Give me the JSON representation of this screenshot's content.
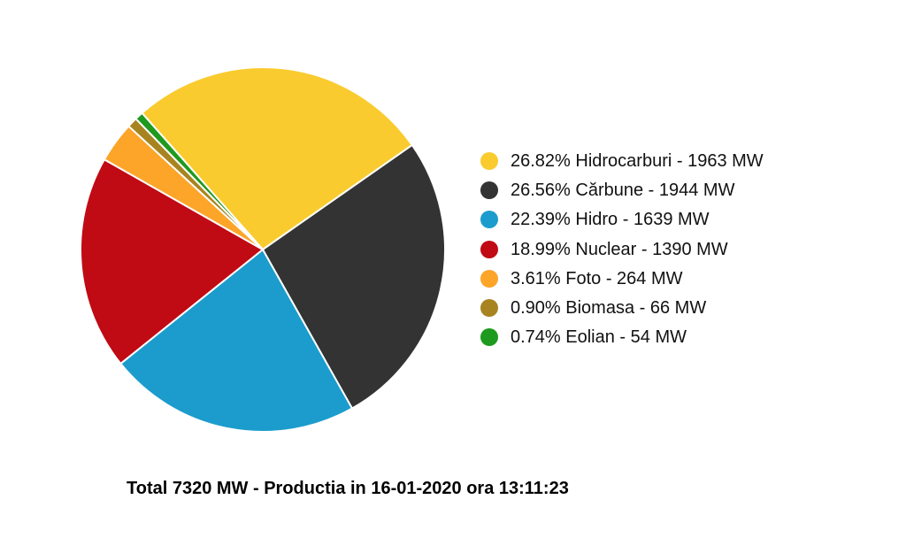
{
  "chart_data": {
    "type": "pie",
    "total_label": "Total 7320 MW - Productia in 16-01-2020 ora 13:11:23",
    "slices": [
      {
        "label": "26.82% Hidrocarburi - 1963 MW",
        "value": 1963,
        "percent": 26.82,
        "color": "#FACB2E"
      },
      {
        "label": "26.56% Cărbune - 1944 MW",
        "value": 1944,
        "percent": 26.56,
        "color": "#333333"
      },
      {
        "label": "22.39% Hidro - 1639 MW",
        "value": 1639,
        "percent": 22.39,
        "color": "#1B9CCD"
      },
      {
        "label": "18.99% Nuclear - 1390 MW",
        "value": 1390,
        "percent": 18.99,
        "color": "#C00A14"
      },
      {
        "label": "3.61% Foto - 264 MW",
        "value": 264,
        "percent": 3.61,
        "color": "#FCA529"
      },
      {
        "label": "0.90% Biomasa - 66 MW",
        "value": 66,
        "percent": 0.9,
        "color": "#A88420"
      },
      {
        "label": "0.74% Eolian - 54 MW",
        "value": 54,
        "percent": 0.74,
        "color": "#1E9A1E"
      }
    ],
    "legend_position": "right"
  }
}
